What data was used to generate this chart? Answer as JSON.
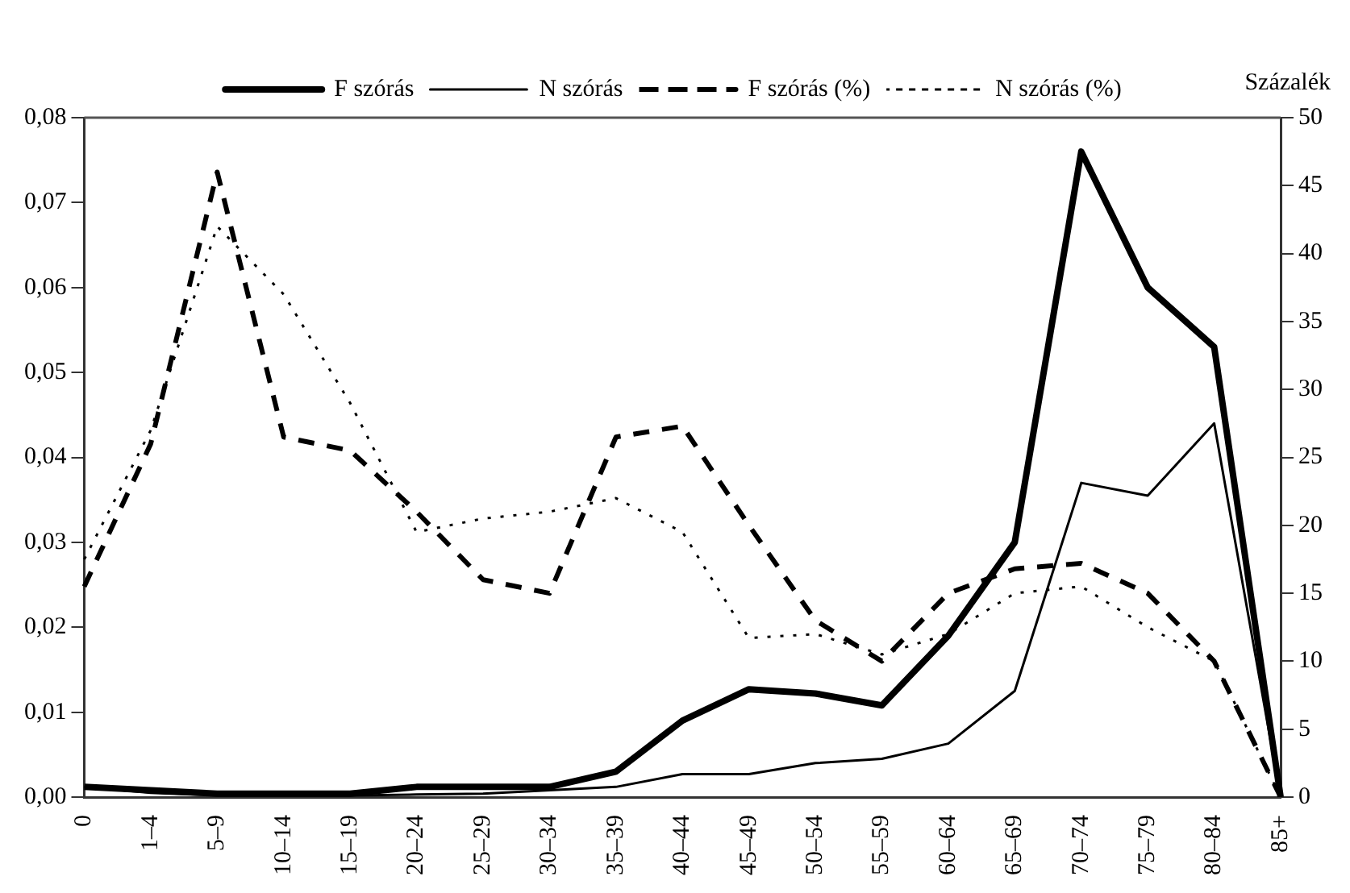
{
  "chart_data": {
    "type": "line",
    "categories": [
      "0",
      "1–4",
      "5–9",
      "10–14",
      "15–19",
      "20–24",
      "25–29",
      "30–34",
      "35–39",
      "40–44",
      "45–49",
      "50–54",
      "55–59",
      "60–64",
      "65–69",
      "70–74",
      "75–79",
      "80–84",
      "85+"
    ],
    "series": [
      {
        "name": "F szórás",
        "color": "#000000",
        "line_style": "solid",
        "values": [
          0.0012,
          0.0008,
          0.0004,
          0.0004,
          0.0004,
          0.0012,
          0.0012,
          0.0012,
          0.003,
          0.009,
          0.0127,
          0.0122,
          0.0108,
          0.019,
          0.03,
          0.076,
          0.06,
          0.053,
          0
        ]
      },
      {
        "name": "N szórás",
        "color": "#000000",
        "line_style": "solid",
        "values": [
          0.0012,
          0.0005,
          0.0002,
          0.0002,
          0.0002,
          0.0003,
          0.0004,
          0.0008,
          0.0012,
          0.0027,
          0.0027,
          0.004,
          0.0045,
          0.0063,
          0.0125,
          0.037,
          0.0355,
          0.044,
          0
        ]
      },
      {
        "name": "F szórás (%)",
        "color": "#000000",
        "line_style": "dashed",
        "axis": "y2",
        "values": [
          15.5,
          26,
          46,
          26.5,
          25.5,
          21,
          16,
          15,
          26.5,
          27.3,
          20,
          13,
          10,
          15,
          16.8,
          17.2,
          15,
          10,
          0
        ]
      },
      {
        "name": "N szórás (%)",
        "color": "#000000",
        "line_style": "dotted",
        "axis": "y2",
        "values": [
          17.5,
          27,
          42,
          37,
          29,
          19.5,
          20.5,
          21,
          22,
          19.5,
          11.7,
          12,
          10.5,
          12,
          15,
          15.5,
          12.5,
          10,
          0
        ]
      }
    ],
    "ylim": [
      0,
      0.08
    ],
    "yticks": [
      {
        "value": 0,
        "label": "0,00"
      },
      {
        "value": 0.01,
        "label": "0,01"
      },
      {
        "value": 0.02,
        "label": "0,02"
      },
      {
        "value": 0.03,
        "label": "0,03"
      },
      {
        "value": 0.04,
        "label": "0,04"
      },
      {
        "value": 0.05,
        "label": "0,05"
      },
      {
        "value": 0.06,
        "label": "0,06"
      },
      {
        "value": 0.07,
        "label": "0,07"
      },
      {
        "value": 0.08,
        "label": "0,08"
      }
    ],
    "y2lim": [
      0,
      50
    ],
    "y2ticks": [
      0,
      5,
      10,
      15,
      20,
      25,
      30,
      35,
      40,
      45,
      50
    ],
    "y2label": "Százalék",
    "legend": "top",
    "grid": false,
    "marker": "none"
  }
}
